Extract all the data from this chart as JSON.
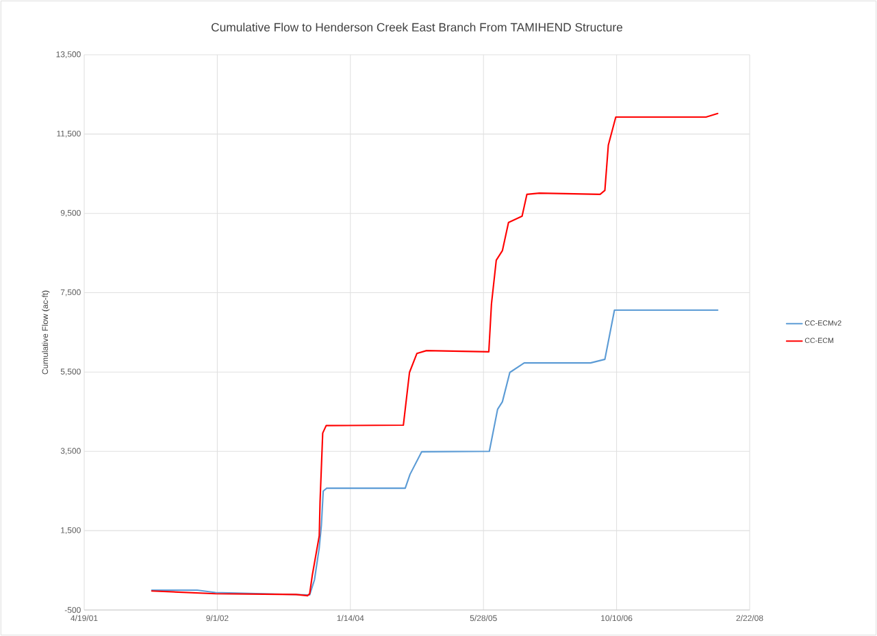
{
  "chart_data": {
    "type": "line",
    "title": "Cumulative Flow to Henderson Creek East Branch From TAMIHEND Structure",
    "ylabel": "Cumulative Flow (ac-ft)",
    "xlim": [
      "2001-04-19",
      "2008-02-22"
    ],
    "xticks": [
      {
        "value": "2001-04-19",
        "label": "4/19/01"
      },
      {
        "value": "2002-09-01",
        "label": "9/1/02"
      },
      {
        "value": "2004-01-14",
        "label": "1/14/04"
      },
      {
        "value": "2005-05-28",
        "label": "5/28/05"
      },
      {
        "value": "2006-10-10",
        "label": "10/10/06"
      },
      {
        "value": "2008-02-22",
        "label": "2/22/08"
      }
    ],
    "ylim": [
      -500,
      13500
    ],
    "yticks": [
      -500,
      {
        "value": 1500,
        "label": "1,500"
      },
      {
        "value": 3500,
        "label": "3,500"
      },
      {
        "value": 5500,
        "label": "5,500"
      },
      {
        "value": 7500,
        "label": "7,500"
      },
      {
        "value": 9500,
        "label": "9,500"
      },
      {
        "value": 11500,
        "label": "11,500"
      },
      {
        "value": 13500,
        "label": "13,500"
      }
    ],
    "grid": true,
    "legend": "right",
    "line_style": "solid",
    "series": [
      {
        "name": "CC-ECMv2",
        "color": "#5b9bd5",
        "x": [
          "2001-12-29",
          "2002-06-17",
          "2002-08-25",
          "2003-08-14",
          "2003-09-01",
          "2003-09-19",
          "2003-09-27",
          "2003-10-04",
          "2003-10-17",
          "2004-08-07",
          "2004-08-25",
          "2004-10-08",
          "2005-06-19",
          "2005-07-20",
          "2005-08-07",
          "2005-09-04",
          "2005-10-28",
          "2006-07-04",
          "2006-08-27",
          "2006-10-02",
          "2007-10-25"
        ],
        "values": [
          0,
          0,
          -60,
          -120,
          260,
          1070,
          1640,
          2500,
          2570,
          2570,
          2920,
          3490,
          3500,
          4560,
          4750,
          5490,
          5730,
          5730,
          5820,
          7060,
          7060
        ]
      },
      {
        "name": "CC-ECM",
        "color": "#ff0000",
        "x": [
          "2001-12-29",
          "2002-08-25",
          "2003-06-24",
          "2003-08-06",
          "2003-08-14",
          "2003-08-24",
          "2003-09-19",
          "2003-09-22",
          "2003-10-02",
          "2003-10-15",
          "2004-07-31",
          "2004-08-23",
          "2004-09-20",
          "2004-10-26",
          "2005-06-17",
          "2005-06-27",
          "2005-07-15",
          "2005-08-07",
          "2005-08-30",
          "2005-10-20",
          "2005-11-07",
          "2005-12-24",
          "2006-08-09",
          "2006-08-27",
          "2006-09-09",
          "2006-10-07",
          "2007-09-11",
          "2007-10-25"
        ],
        "values": [
          -20,
          -90,
          -110,
          -140,
          -90,
          380,
          1370,
          2230,
          3960,
          4150,
          4160,
          5490,
          5970,
          6040,
          6010,
          7220,
          8320,
          8560,
          9270,
          9430,
          9980,
          10010,
          9980,
          10080,
          11220,
          11930,
          11930,
          12020
        ]
      }
    ]
  }
}
